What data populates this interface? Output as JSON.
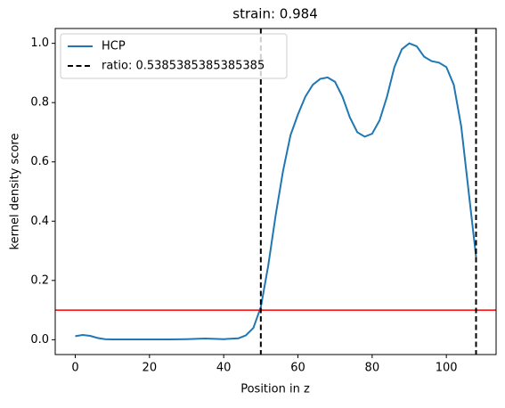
{
  "chart_data": {
    "type": "line",
    "title": "strain: 0.984",
    "xlabel": "Position in z",
    "ylabel": "kernel density score",
    "x": [
      0,
      2,
      4,
      6,
      8,
      10,
      15,
      20,
      25,
      30,
      35,
      40,
      44,
      46,
      48,
      50,
      52,
      54,
      56,
      58,
      60,
      62,
      64,
      66,
      68,
      70,
      72,
      74,
      76,
      78,
      80,
      82,
      84,
      86,
      88,
      90,
      92,
      94,
      96,
      98,
      100,
      102,
      104,
      106,
      108
    ],
    "series": [
      {
        "name": "HCP",
        "color": "#1f77b4",
        "values": [
          0.012,
          0.016,
          0.013,
          0.006,
          0.002,
          0.001,
          0.001,
          0.001,
          0.001,
          0.002,
          0.004,
          0.002,
          0.005,
          0.015,
          0.04,
          0.11,
          0.25,
          0.42,
          0.57,
          0.69,
          0.76,
          0.82,
          0.86,
          0.88,
          0.885,
          0.87,
          0.82,
          0.75,
          0.7,
          0.685,
          0.695,
          0.74,
          0.82,
          0.92,
          0.98,
          1.0,
          0.99,
          0.955,
          0.94,
          0.935,
          0.92,
          0.86,
          0.72,
          0.5,
          0.28
        ]
      }
    ],
    "vlines": {
      "name": "ratio: 0.5385385385385385",
      "color": "#000000",
      "x": [
        50,
        108
      ]
    },
    "hline": {
      "value": 0.1,
      "color": "#ff0000"
    },
    "xlim": [
      -5.4,
      113.4
    ],
    "ylim": [
      -0.05,
      1.05
    ],
    "xticks": [
      0,
      20,
      40,
      60,
      80,
      100
    ],
    "yticks": [
      {
        "value": 0,
        "label": "0.0"
      },
      {
        "value": 0.2,
        "label": "0.2"
      },
      {
        "value": 0.4,
        "label": "0.4"
      },
      {
        "value": 0.6,
        "label": "0.6"
      },
      {
        "value": 0.8,
        "label": "0.8"
      },
      {
        "value": 1,
        "label": "1.0"
      }
    ],
    "legend": "upper left"
  }
}
